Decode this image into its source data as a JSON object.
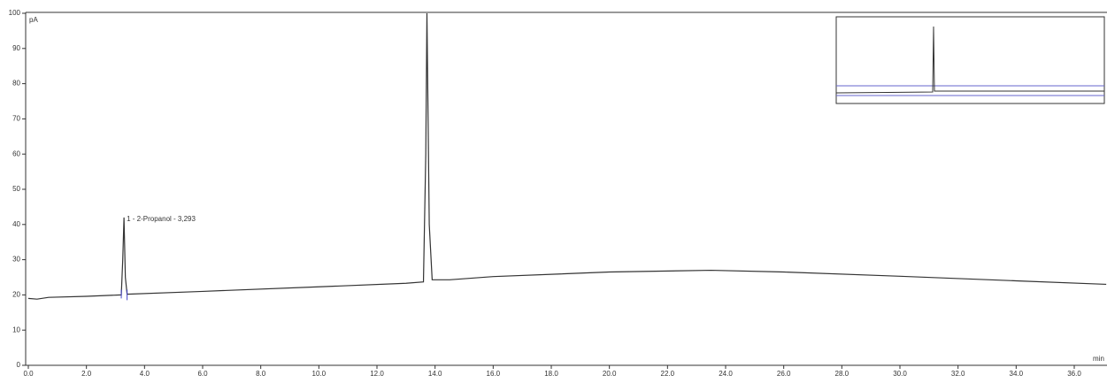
{
  "chart_data": {
    "type": "line",
    "y_label": "pA",
    "x_label": "min",
    "annotation": "1 - 2-Propanol - 3,293",
    "x": [
      0,
      0.3,
      0.7,
      2.0,
      3.2,
      3.25,
      3.293,
      3.34,
      3.4,
      6.0,
      10.0,
      13.0,
      13.6,
      13.68,
      13.72,
      13.8,
      13.9,
      14.5,
      16.0,
      20.0,
      23.5,
      26.0,
      30.0,
      34.0,
      37.1
    ],
    "values": [
      19,
      18.8,
      19.3,
      19.6,
      20,
      30,
      42,
      25,
      20.2,
      21,
      22.3,
      23.3,
      23.7,
      60,
      100,
      40,
      24.3,
      24.3,
      25.2,
      26.5,
      27,
      26.5,
      25.3,
      24,
      23
    ],
    "color": "#333333",
    "xlim": [
      0,
      37.1
    ],
    "xticks": [
      {
        "value": 0,
        "label": "0.0"
      },
      {
        "value": 2,
        "label": "2.0"
      },
      {
        "value": 4,
        "label": "4.0"
      },
      {
        "value": 6,
        "label": "6.0"
      },
      {
        "value": 8,
        "label": "8.0"
      },
      {
        "value": 10,
        "label": "10.0"
      },
      {
        "value": 12,
        "label": "12.0"
      },
      {
        "value": 14,
        "label": "14.0"
      },
      {
        "value": 16,
        "label": "16.0"
      },
      {
        "value": 18,
        "label": "18.0"
      },
      {
        "value": 20,
        "label": "20.0"
      },
      {
        "value": 22,
        "label": "22.0"
      },
      {
        "value": 24,
        "label": "24.0"
      },
      {
        "value": 26,
        "label": "26.0"
      },
      {
        "value": 28,
        "label": "28.0"
      },
      {
        "value": 30,
        "label": "30.0"
      },
      {
        "value": 32,
        "label": "32.0"
      },
      {
        "value": 34,
        "label": "34.0"
      },
      {
        "value": 36,
        "label": "36.0"
      }
    ],
    "ylim": [
      0,
      100
    ],
    "yticks": [
      0,
      10,
      20,
      30,
      40,
      50,
      60,
      70,
      80,
      90,
      100
    ]
  }
}
